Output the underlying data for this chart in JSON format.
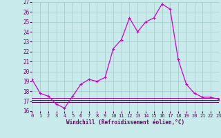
{
  "background_color": "#c8eaea",
  "grid_color": "#a0c8c8",
  "line_color_main": "#cc00cc",
  "line_color_dark": "#660066",
  "line_color_med": "#990099",
  "ylim": [
    16,
    27
  ],
  "xlim": [
    0,
    23
  ],
  "yticks": [
    16,
    17,
    18,
    19,
    20,
    21,
    22,
    23,
    24,
    25,
    26,
    27
  ],
  "xticks": [
    0,
    1,
    2,
    3,
    4,
    5,
    6,
    7,
    8,
    9,
    10,
    11,
    12,
    13,
    14,
    15,
    16,
    17,
    18,
    19,
    20,
    21,
    22,
    23
  ],
  "xlabel": "Windchill (Refroidissement éolien,°C)",
  "series_main": [
    19.2,
    17.8,
    17.5,
    16.7,
    16.3,
    17.5,
    18.7,
    19.2,
    19.0,
    19.4,
    22.3,
    23.2,
    25.4,
    24.0,
    25.0,
    25.4,
    26.8,
    26.3,
    21.2,
    18.7,
    17.8,
    17.4,
    17.4,
    17.2
  ],
  "series_flat1": [
    17.1,
    17.1,
    17.1,
    17.1,
    17.1,
    17.1,
    17.1,
    17.1,
    17.1,
    17.1,
    17.1,
    17.1,
    17.1,
    17.1,
    17.1,
    17.1,
    17.1,
    17.1,
    17.1,
    17.1,
    17.1,
    17.1,
    17.1,
    17.1
  ],
  "series_flat2": [
    17.3,
    17.3,
    17.3,
    17.3,
    17.3,
    17.3,
    17.3,
    17.3,
    17.3,
    17.3,
    17.3,
    17.3,
    17.3,
    17.3,
    17.3,
    17.3,
    17.3,
    17.3,
    17.3,
    17.3,
    17.3,
    17.3,
    17.3,
    17.3
  ],
  "series_flat3": [
    16.9,
    16.9,
    16.9,
    16.9,
    16.9,
    16.9,
    16.9,
    16.9,
    16.9,
    16.9,
    16.9,
    16.9,
    16.9,
    16.9,
    16.9,
    16.9,
    16.9,
    16.9,
    16.9,
    16.9,
    16.9,
    16.9,
    16.9,
    16.9
  ]
}
